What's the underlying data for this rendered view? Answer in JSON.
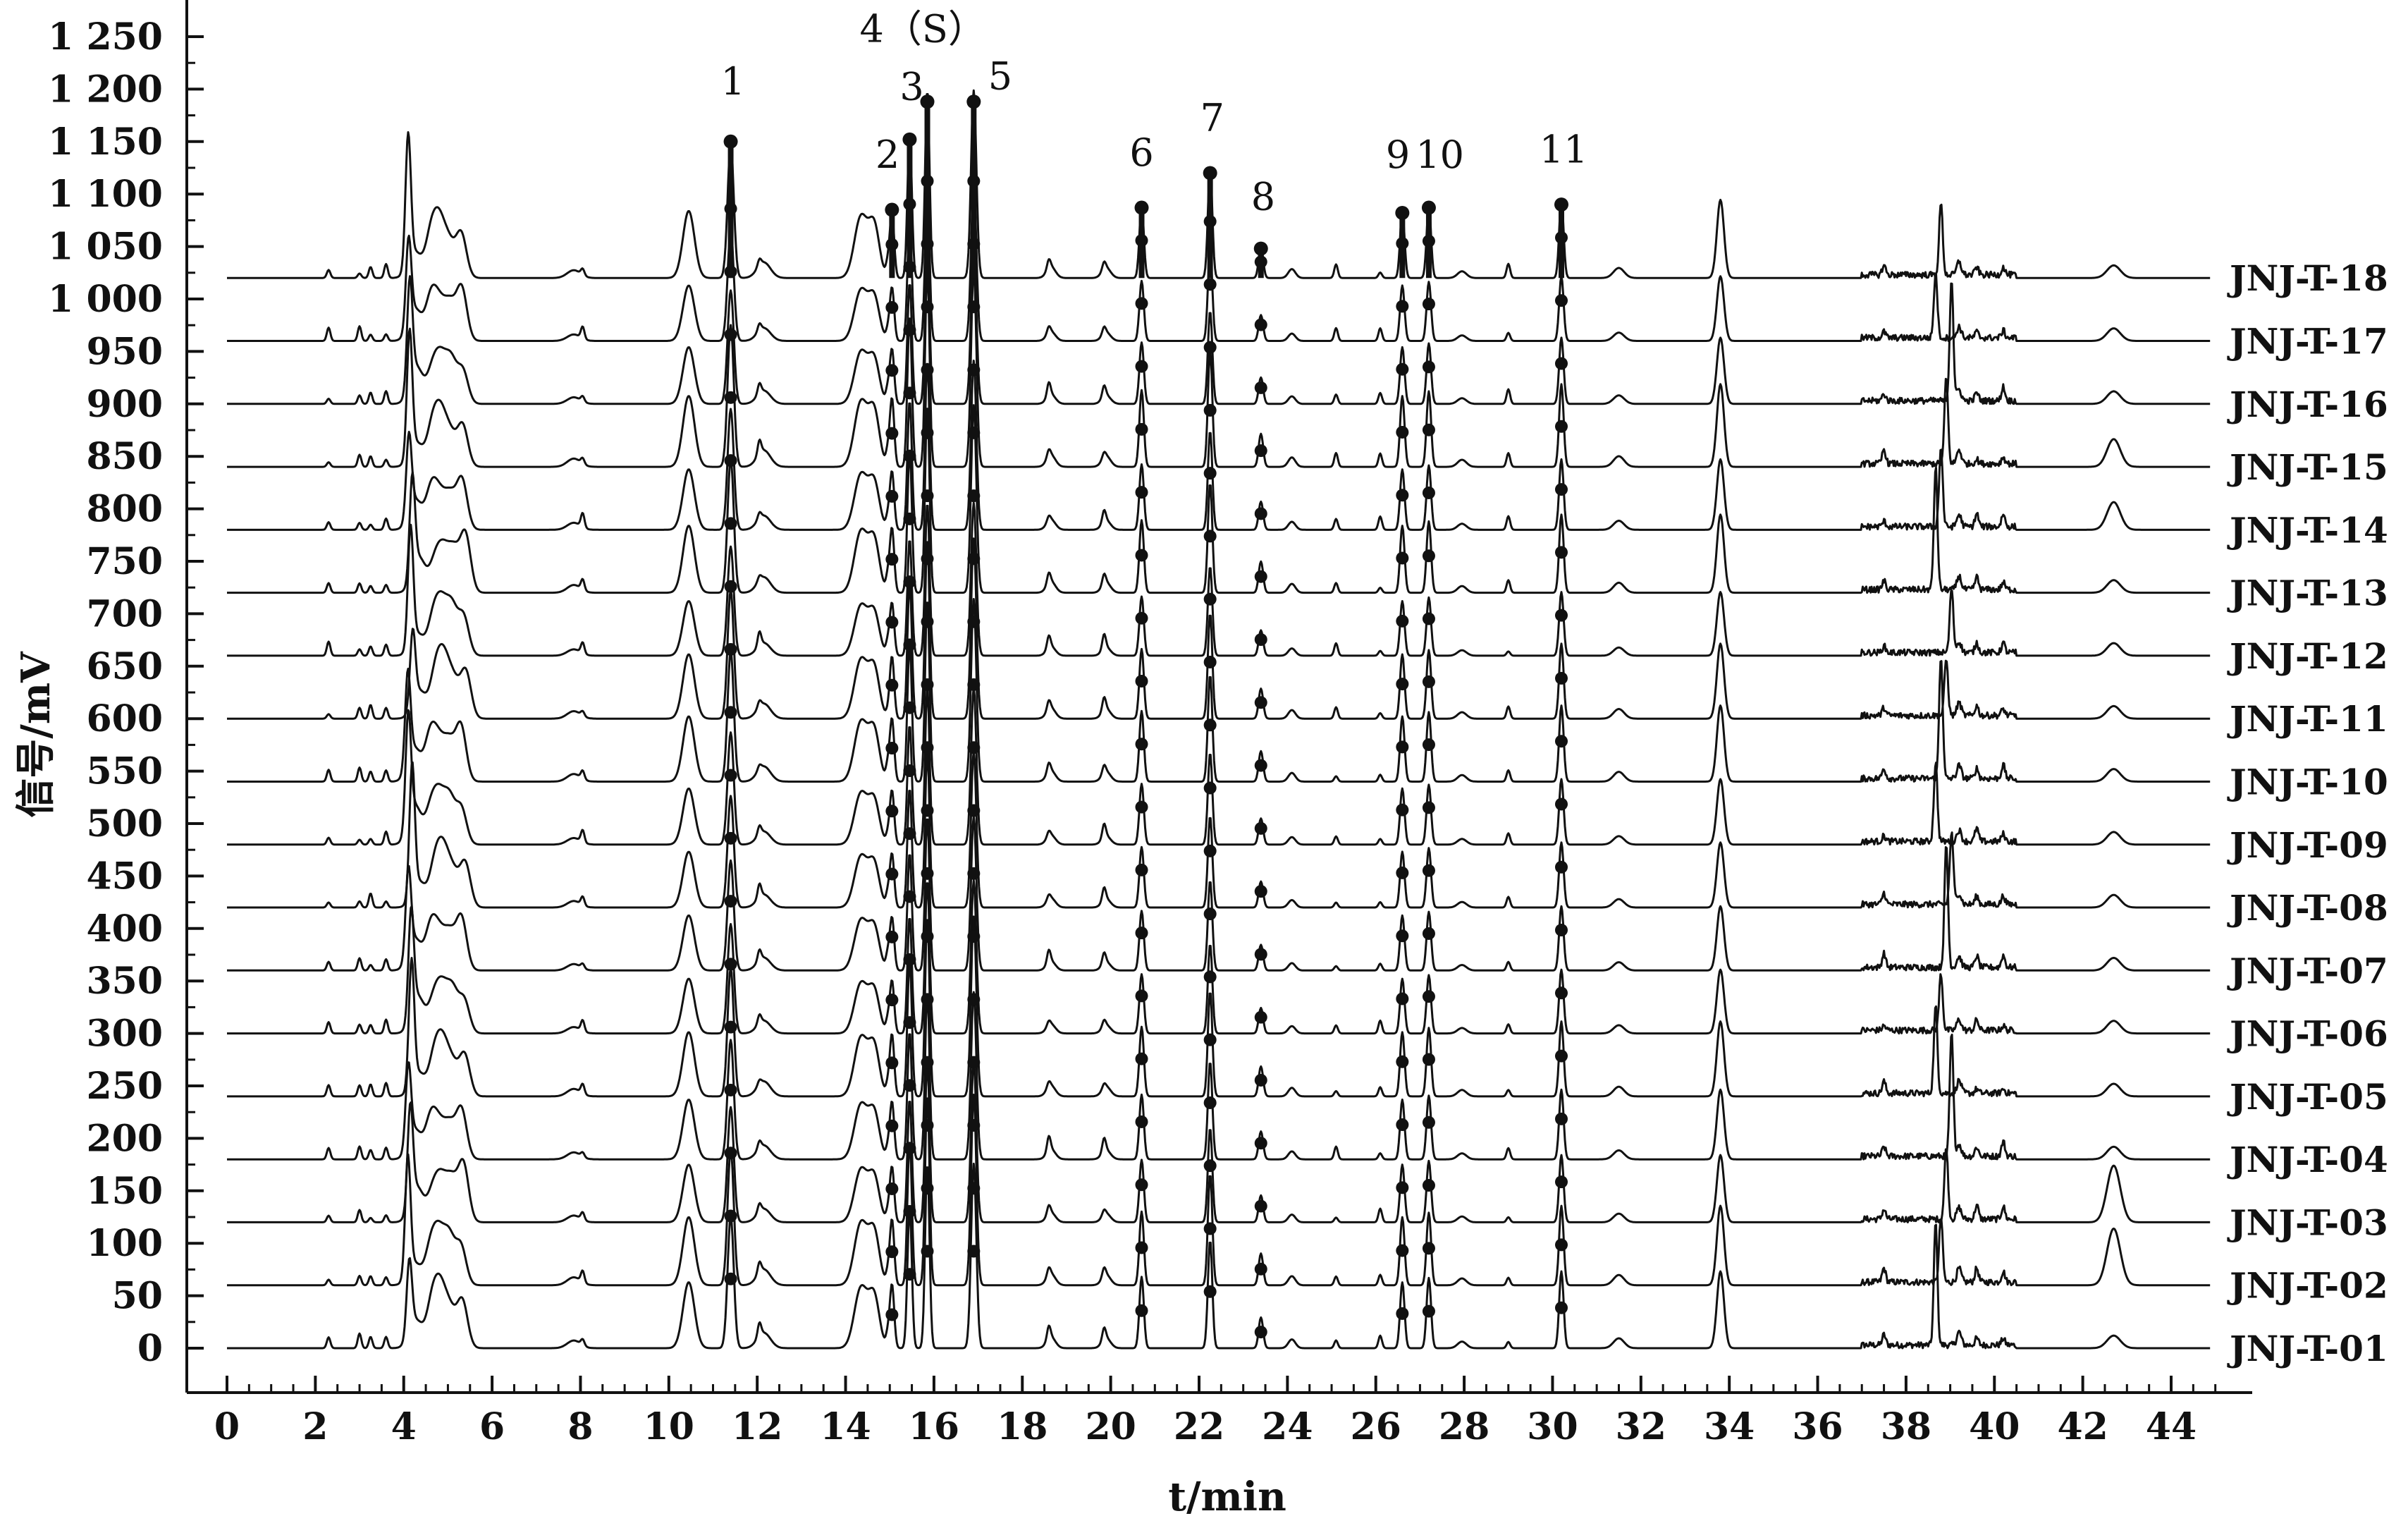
{
  "chart_data": {
    "type": "line",
    "title": "",
    "xlabel": "t/min",
    "ylabel": "信号/mV",
    "xlim": [
      0,
      45
    ],
    "ylim": [
      -20,
      1280
    ],
    "x_ticks": [
      0,
      2,
      4,
      6,
      8,
      10,
      12,
      14,
      16,
      18,
      20,
      22,
      24,
      26,
      28,
      30,
      32,
      34,
      36,
      38,
      40,
      42,
      44
    ],
    "x_tick_labels": [
      "0",
      "2",
      "4",
      "6",
      "8",
      "10",
      "12",
      "14",
      "16",
      "18",
      "20",
      "22",
      "24",
      "26",
      "28",
      "30",
      "32",
      "34",
      "36",
      "38",
      "40",
      "42",
      "44"
    ],
    "y_ticks": [
      0,
      50,
      100,
      150,
      200,
      250,
      300,
      350,
      400,
      450,
      500,
      550,
      600,
      650,
      700,
      750,
      800,
      850,
      900,
      950,
      1000,
      1050,
      1100,
      1150,
      1200,
      1250
    ],
    "y_tick_labels": [
      "0",
      "50",
      "100",
      "150",
      "200",
      "250",
      "300",
      "350",
      "400",
      "450",
      "500",
      "550",
      "600",
      "650",
      "700",
      "750",
      "800",
      "850",
      "900",
      "950",
      "1 000",
      "1 050",
      "1 100",
      "1 150",
      "1 200",
      "1 250"
    ],
    "grid": false,
    "legend": "right-end labels",
    "line_color": "#111111",
    "series": [
      {
        "name": "JNJ-T-01",
        "baseline": 0
      },
      {
        "name": "JNJ-T-02",
        "baseline": 60
      },
      {
        "name": "JNJ-T-03",
        "baseline": 120
      },
      {
        "name": "JNJ-T-04",
        "baseline": 180
      },
      {
        "name": "JNJ-T-05",
        "baseline": 240
      },
      {
        "name": "JNJ-T-06",
        "baseline": 300
      },
      {
        "name": "JNJ-T-07",
        "baseline": 360
      },
      {
        "name": "JNJ-T-08",
        "baseline": 420
      },
      {
        "name": "JNJ-T-09",
        "baseline": 480
      },
      {
        "name": "JNJ-T-10",
        "baseline": 540
      },
      {
        "name": "JNJ-T-11",
        "baseline": 600
      },
      {
        "name": "JNJ-T-12",
        "baseline": 660
      },
      {
        "name": "JNJ-T-13",
        "baseline": 720
      },
      {
        "name": "JNJ-T-14",
        "baseline": 780
      },
      {
        "name": "JNJ-T-15",
        "baseline": 840
      },
      {
        "name": "JNJ-T-16",
        "baseline": 900
      },
      {
        "name": "JNJ-T-17",
        "baseline": 960
      },
      {
        "name": "JNJ-T-18",
        "baseline": 1020
      }
    ],
    "peaks": [
      {
        "label": "",
        "x": 4.15,
        "height": 100,
        "width": 0.06
      },
      {
        "label": "",
        "x": 4.3,
        "height": 30,
        "width": 0.15
      },
      {
        "label": "",
        "x": 4.65,
        "height": 28,
        "width": 0.12
      },
      {
        "label": "",
        "x": 4.85,
        "height": 48,
        "width": 0.15
      },
      {
        "label": "",
        "x": 5.1,
        "height": 30,
        "width": 0.12
      },
      {
        "label": "",
        "x": 5.35,
        "height": 45,
        "width": 0.12
      },
      {
        "label": "",
        "x": 7.85,
        "height": 7,
        "width": 0.15
      },
      {
        "label": "",
        "x": 10.45,
        "height": 60,
        "width": 0.13
      },
      {
        "label": "1",
        "x": 11.4,
        "height": 120,
        "width": 0.07
      },
      {
        "label": "",
        "x": 12.15,
        "height": 14,
        "width": 0.15
      },
      {
        "label": "",
        "x": 14.35,
        "height": 55,
        "width": 0.15
      },
      {
        "label": "",
        "x": 14.65,
        "height": 45,
        "width": 0.12
      },
      {
        "label": "2",
        "x": 15.05,
        "height": 58,
        "width": 0.05
      },
      {
        "label": "3",
        "x": 15.45,
        "height": 128,
        "width": 0.05
      },
      {
        "label": "4（S）",
        "x": 15.85,
        "height": 168,
        "width": 0.05
      },
      {
        "label": "5",
        "x": 16.9,
        "height": 168,
        "width": 0.06
      },
      {
        "label": "",
        "x": 18.65,
        "height": 10,
        "width": 0.1
      },
      {
        "label": "",
        "x": 19.9,
        "height": 9,
        "width": 0.1
      },
      {
        "label": "6",
        "x": 20.7,
        "height": 65,
        "width": 0.05
      },
      {
        "label": "7",
        "x": 22.25,
        "height": 98,
        "width": 0.05
      },
      {
        "label": "8",
        "x": 23.4,
        "height": 28,
        "width": 0.05
      },
      {
        "label": "",
        "x": 24.1,
        "height": 8,
        "width": 0.08
      },
      {
        "label": "9",
        "x": 26.6,
        "height": 60,
        "width": 0.05
      },
      {
        "label": "10",
        "x": 27.2,
        "height": 64,
        "width": 0.05
      },
      {
        "label": "",
        "x": 27.95,
        "height": 6,
        "width": 0.1
      },
      {
        "label": "11",
        "x": 30.2,
        "height": 70,
        "width": 0.05
      },
      {
        "label": "",
        "x": 31.5,
        "height": 9,
        "width": 0.12
      },
      {
        "label": "",
        "x": 33.8,
        "height": 70,
        "width": 0.08
      },
      {
        "label": "",
        "x": 38.85,
        "height": 90,
        "width": 0.04
      },
      {
        "label": "",
        "x": 39.2,
        "height": 12,
        "width": 0.05
      },
      {
        "label": "",
        "x": 42.7,
        "height": 12,
        "width": 0.15
      }
    ],
    "peak_label_heights": [
      {
        "label": "1",
        "y": 1150
      },
      {
        "label": "2",
        "y": 1085
      },
      {
        "label": "3",
        "y": 1152
      },
      {
        "label": "4（S）",
        "y": 1188
      },
      {
        "label": "5",
        "y": 1188
      },
      {
        "label": "6",
        "y": 1087
      },
      {
        "label": "7",
        "y": 1120
      },
      {
        "label": "8",
        "y": 1048
      },
      {
        "label": "9",
        "y": 1082
      },
      {
        "label": "10",
        "y": 1087
      },
      {
        "label": "11",
        "y": 1090
      }
    ]
  }
}
